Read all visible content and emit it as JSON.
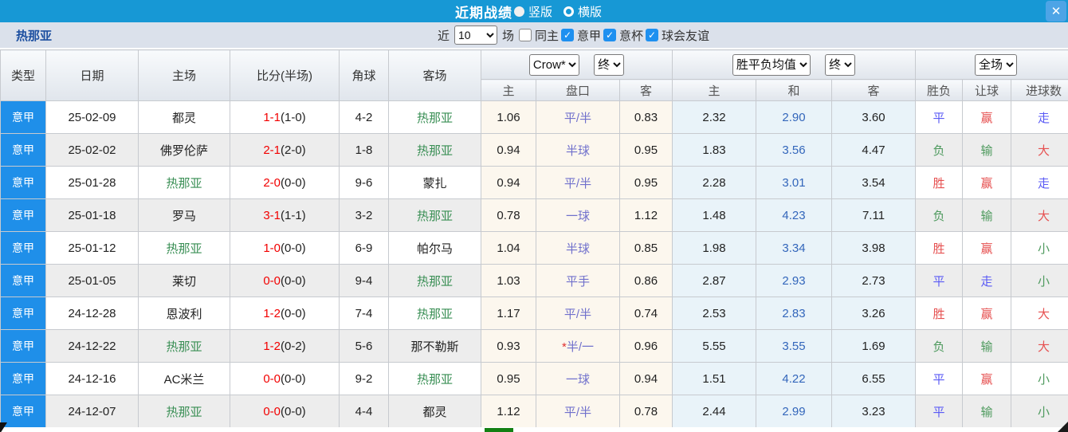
{
  "title_bar": {
    "title": "近期战绩",
    "layout_options": [
      {
        "label": "竖版",
        "selected": true
      },
      {
        "label": "横版",
        "selected": false
      }
    ],
    "close_icon": "✕"
  },
  "filter_bar": {
    "team": "热那亚",
    "near_label": "近",
    "near_select": {
      "options": [
        "10"
      ],
      "value": "10"
    },
    "games_label": "场",
    "checkboxes": [
      {
        "label": "同主",
        "checked": false
      },
      {
        "label": "意甲",
        "checked": true
      },
      {
        "label": "意杯",
        "checked": true
      },
      {
        "label": "球会友谊",
        "checked": true
      }
    ],
    "check_icon": "✓"
  },
  "table": {
    "header": {
      "main_cols": [
        "类型",
        "日期",
        "主场",
        "比分(半场)",
        "角球",
        "客场"
      ],
      "sub_cols": [
        "主",
        "盘口",
        "客",
        "主",
        "和",
        "客",
        "胜负",
        "让球",
        "进球数"
      ],
      "selects": {
        "company": {
          "options": [
            "Crow*"
          ],
          "value": "Crow*"
        },
        "company_state": {
          "options": [
            "终"
          ],
          "value": "终"
        },
        "odds_type": {
          "options": [
            "胜平负均值"
          ],
          "value": "胜平负均值"
        },
        "odds_state": {
          "options": [
            "终"
          ],
          "value": "终"
        },
        "scope": {
          "options": [
            "全场"
          ],
          "value": "全场"
        }
      }
    },
    "rows": [
      {
        "league": "意甲",
        "date": "25-02-09",
        "home": "都灵",
        "home_hl": false,
        "score": "1-1",
        "half": "(1-0)",
        "corner": "4-2",
        "away": "热那亚",
        "away_hl": true,
        "crow_home": "1.06",
        "handicap": "平/半",
        "crow_away": "0.83",
        "odd_win": "2.32",
        "odd_draw": "2.90",
        "odd_lose": "3.60",
        "result": "平",
        "let_result": "赢",
        "goal_result": "走"
      },
      {
        "league": "意甲",
        "date": "25-02-02",
        "home": "佛罗伦萨",
        "home_hl": false,
        "score": "2-1",
        "half": "(2-0)",
        "corner": "1-8",
        "away": "热那亚",
        "away_hl": true,
        "crow_home": "0.94",
        "handicap": "半球",
        "crow_away": "0.95",
        "odd_win": "1.83",
        "odd_draw": "3.56",
        "odd_lose": "4.47",
        "result": "负",
        "let_result": "输",
        "goal_result": "大"
      },
      {
        "league": "意甲",
        "date": "25-01-28",
        "home": "热那亚",
        "home_hl": true,
        "score": "2-0",
        "half": "(0-0)",
        "corner": "9-6",
        "away": "蒙扎",
        "away_hl": false,
        "crow_home": "0.94",
        "handicap": "平/半",
        "crow_away": "0.95",
        "odd_win": "2.28",
        "odd_draw": "3.01",
        "odd_lose": "3.54",
        "result": "胜",
        "let_result": "赢",
        "goal_result": "走"
      },
      {
        "league": "意甲",
        "date": "25-01-18",
        "home": "罗马",
        "home_hl": false,
        "score": "3-1",
        "half": "(1-1)",
        "corner": "3-2",
        "away": "热那亚",
        "away_hl": true,
        "crow_home": "0.78",
        "handicap": "一球",
        "crow_away": "1.12",
        "odd_win": "1.48",
        "odd_draw": "4.23",
        "odd_lose": "7.11",
        "result": "负",
        "let_result": "输",
        "goal_result": "大"
      },
      {
        "league": "意甲",
        "date": "25-01-12",
        "home": "热那亚",
        "home_hl": true,
        "score": "1-0",
        "half": "(0-0)",
        "corner": "6-9",
        "away": "帕尔马",
        "away_hl": false,
        "crow_home": "1.04",
        "handicap": "半球",
        "crow_away": "0.85",
        "odd_win": "1.98",
        "odd_draw": "3.34",
        "odd_lose": "3.98",
        "result": "胜",
        "let_result": "赢",
        "goal_result": "小"
      },
      {
        "league": "意甲",
        "date": "25-01-05",
        "home": "莱切",
        "home_hl": false,
        "score": "0-0",
        "half": "(0-0)",
        "corner": "9-4",
        "away": "热那亚",
        "away_hl": true,
        "crow_home": "1.03",
        "handicap": "平手",
        "crow_away": "0.86",
        "odd_win": "2.87",
        "odd_draw": "2.93",
        "odd_lose": "2.73",
        "result": "平",
        "let_result": "走",
        "goal_result": "小"
      },
      {
        "league": "意甲",
        "date": "24-12-28",
        "home": "恩波利",
        "home_hl": false,
        "score": "1-2",
        "half": "(0-0)",
        "corner": "7-4",
        "away": "热那亚",
        "away_hl": true,
        "crow_home": "1.17",
        "handicap": "平/半",
        "crow_away": "0.74",
        "odd_win": "2.53",
        "odd_draw": "2.83",
        "odd_lose": "3.26",
        "result": "胜",
        "let_result": "赢",
        "goal_result": "大"
      },
      {
        "league": "意甲",
        "date": "24-12-22",
        "home": "热那亚",
        "home_hl": true,
        "score": "1-2",
        "half": "(0-2)",
        "corner": "5-6",
        "away": "那不勒斯",
        "away_hl": false,
        "crow_home": "0.93",
        "handicap": "*半/一",
        "crow_away": "0.96",
        "odd_win": "5.55",
        "odd_draw": "3.55",
        "odd_lose": "1.69",
        "result": "负",
        "let_result": "输",
        "goal_result": "大"
      },
      {
        "league": "意甲",
        "date": "24-12-16",
        "home": "AC米兰",
        "home_hl": false,
        "score": "0-0",
        "half": "(0-0)",
        "corner": "9-2",
        "away": "热那亚",
        "away_hl": true,
        "crow_home": "0.95",
        "handicap": "一球",
        "crow_away": "0.94",
        "odd_win": "1.51",
        "odd_draw": "4.22",
        "odd_lose": "6.55",
        "result": "平",
        "let_result": "赢",
        "goal_result": "小"
      },
      {
        "league": "意甲",
        "date": "24-12-07",
        "home": "热那亚",
        "home_hl": true,
        "score": "0-0",
        "half": "(0-0)",
        "corner": "4-4",
        "away": "都灵",
        "away_hl": false,
        "crow_home": "1.12",
        "handicap": "平/半",
        "crow_away": "0.78",
        "odd_win": "2.44",
        "odd_draw": "2.99",
        "odd_lose": "3.23",
        "result": "平",
        "let_result": "输",
        "goal_result": "小"
      }
    ]
  },
  "colors": {
    "titlebar_blue": "#1798d5",
    "league_blue": "#1f8fe9",
    "score_red": "#f20000",
    "team_green": "#3a8f55",
    "handicap_blue": "#7070cc",
    "draw_blue": "#3366bb",
    "result_red": "#e65050",
    "result_blue": "#5a5af5",
    "result_green": "#4e9a5e"
  },
  "result_color_map": {
    "胜": "red",
    "平": "blue",
    "负": "green",
    "赢": "red",
    "输": "green",
    "走": "blue",
    "大": "red",
    "小": "green"
  }
}
